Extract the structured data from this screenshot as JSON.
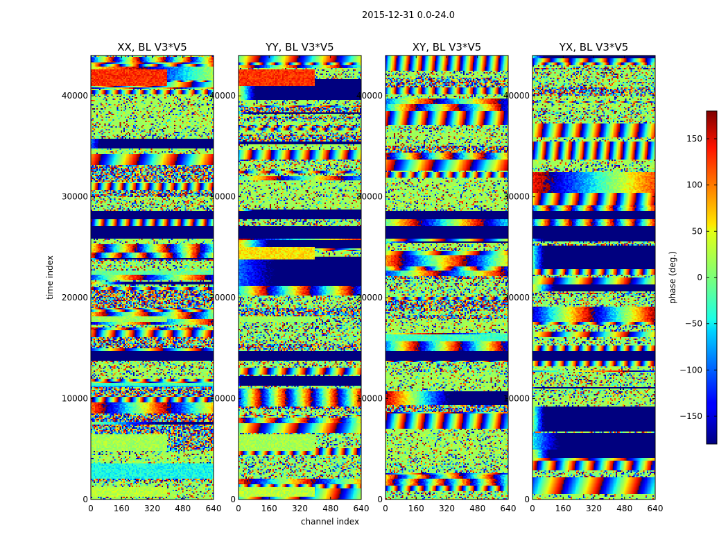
{
  "chart_data": {
    "type": "heatmap",
    "suptitle": "2015-12-31 0.0-24.0",
    "xlabel": "channel index",
    "ylabel": "time index",
    "xlim": [
      0,
      640
    ],
    "ylim": [
      0,
      44000
    ],
    "xticks": [
      0,
      160,
      320,
      480,
      640
    ],
    "yticks": [
      0,
      10000,
      20000,
      30000,
      40000
    ],
    "panels": [
      {
        "title": "XX, BL V3*V5"
      },
      {
        "title": "YY, BL V3*V5"
      },
      {
        "title": "XY, BL V3*V5"
      },
      {
        "title": "YX, BL V3*V5"
      }
    ],
    "colorbar": {
      "label": "phase (deg.)",
      "range": [
        -180,
        180
      ],
      "ticks": [
        -150,
        -100,
        -50,
        0,
        50,
        100,
        150
      ],
      "colormap": "jet"
    },
    "flagged_rows": [
      [
        13700,
        14700
      ],
      [
        25800,
        27100
      ],
      [
        27800,
        28600
      ]
    ],
    "uniform_blocks": [
      {
        "panels": [
          0,
          1
        ],
        "y": [
          41000,
          42600
        ],
        "x": [
          0,
          400
        ],
        "phase": 130
      },
      {
        "panels": [
          0,
          1
        ],
        "y": [
          4800,
          6400
        ],
        "x": [
          0,
          400
        ],
        "phase": 20
      },
      {
        "panels": [
          0,
          1
        ],
        "y": [
          17600,
          18200
        ],
        "x": [
          0,
          400
        ],
        "phase": 15
      },
      {
        "panels": [
          0,
          1
        ],
        "y": [
          300,
          1200
        ],
        "x": [
          0,
          400
        ],
        "phase": 30
      },
      {
        "panels": [
          1
        ],
        "y": [
          23800,
          25000
        ],
        "x": [
          0,
          400
        ],
        "phase": 60
      }
    ]
  }
}
